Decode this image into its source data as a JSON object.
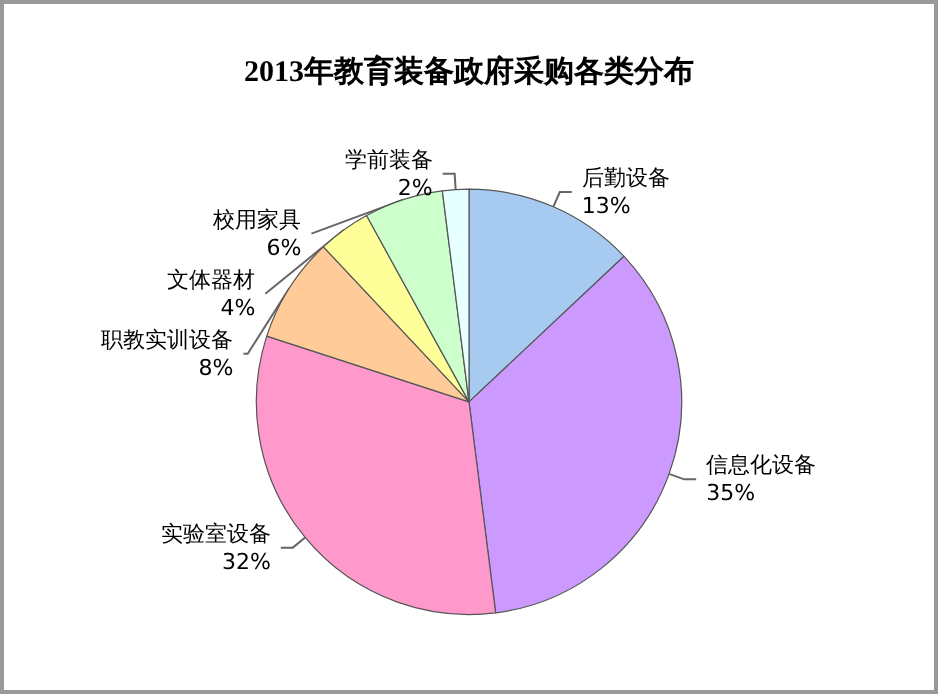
{
  "chart_data": {
    "type": "pie",
    "title": "2013年教育装备政府采购各类分布",
    "categories": [
      "后勤设备",
      "信息化设备",
      "实验室设备",
      "职教实训设备",
      "文体器材",
      "校用家具",
      "学前装备"
    ],
    "values": [
      13,
      35,
      32,
      8,
      4,
      6,
      2
    ],
    "value_labels": [
      "13%",
      "35%",
      "32%",
      "8%",
      "4%",
      "6%",
      "2%"
    ],
    "colors": [
      "#a6caf0",
      "#cc99ff",
      "#ff99cc",
      "#ffcc99",
      "#ffff99",
      "#ccffcc",
      "#e6ffff"
    ],
    "legend": false
  }
}
